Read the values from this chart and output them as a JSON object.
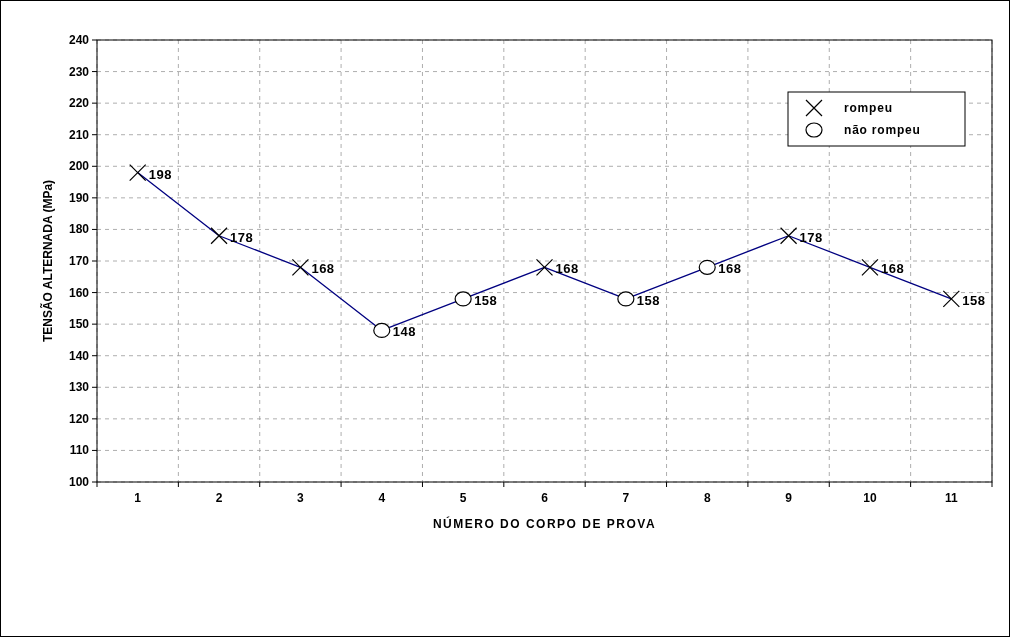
{
  "chart_data": {
    "type": "line",
    "xlabel": "NÚMERO DO CORPO DE PROVA",
    "ylabel": "TENSÃO ALTERNADA (MPa)",
    "categories": [
      "1",
      "2",
      "3",
      "4",
      "5",
      "6",
      "7",
      "8",
      "9",
      "10",
      "11"
    ],
    "series": [
      {
        "color": "#000080",
        "marker": "none",
        "values": [
          198,
          178,
          168,
          148,
          158,
          168,
          158,
          168,
          178,
          168,
          158
        ]
      },
      {
        "type": "scatter",
        "name": "rompeu",
        "color": "#000000",
        "marker": "cross",
        "values": [
          198,
          178,
          168,
          null,
          null,
          168,
          null,
          null,
          178,
          168,
          158
        ],
        "value_labels": [
          "198",
          "178",
          "168",
          null,
          null,
          "168",
          null,
          null,
          "178",
          "168",
          "158"
        ]
      },
      {
        "type": "scatter",
        "name": "não rompeu",
        "color": "#000000",
        "marker": "circle",
        "values": [
          null,
          null,
          null,
          148,
          158,
          null,
          158,
          168,
          null,
          null,
          null
        ],
        "value_labels": [
          null,
          null,
          null,
          "148",
          "158",
          null,
          "158",
          "168",
          null,
          null,
          null
        ]
      }
    ],
    "ylim": [
      100,
      240
    ],
    "yticks": [
      100,
      110,
      120,
      130,
      140,
      150,
      160,
      170,
      180,
      190,
      200,
      210,
      220,
      230,
      240
    ],
    "grid": true,
    "legend": "top right"
  }
}
